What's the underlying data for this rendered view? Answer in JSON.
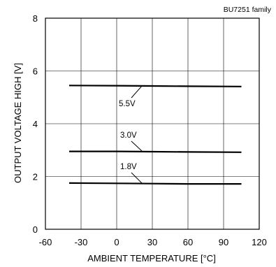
{
  "chart_data": {
    "type": "line",
    "annotation": "BU7251  family",
    "xlabel": "AMBIENT TEMPERATURE [°C]",
    "ylabel": "OUTPUT VOLTAGE HIGH [V]",
    "xlim": [
      -60,
      120
    ],
    "ylim": [
      0,
      8
    ],
    "xticks": [
      "-60",
      "-30",
      "0",
      "30",
      "60",
      "90",
      "120"
    ],
    "yticks": [
      "0",
      "2",
      "4",
      "6",
      "8"
    ],
    "grid": true,
    "series": [
      {
        "name": "5.5V",
        "x": [
          -40,
          0,
          30,
          60,
          105
        ],
        "y": [
          5.45,
          5.44,
          5.43,
          5.42,
          5.41
        ]
      },
      {
        "name": "3.0V",
        "x": [
          -40,
          0,
          30,
          60,
          105
        ],
        "y": [
          2.95,
          2.95,
          2.94,
          2.93,
          2.92
        ]
      },
      {
        "name": "1.8V",
        "x": [
          -40,
          0,
          30,
          60,
          105
        ],
        "y": [
          1.75,
          1.74,
          1.73,
          1.72,
          1.72
        ]
      }
    ]
  }
}
